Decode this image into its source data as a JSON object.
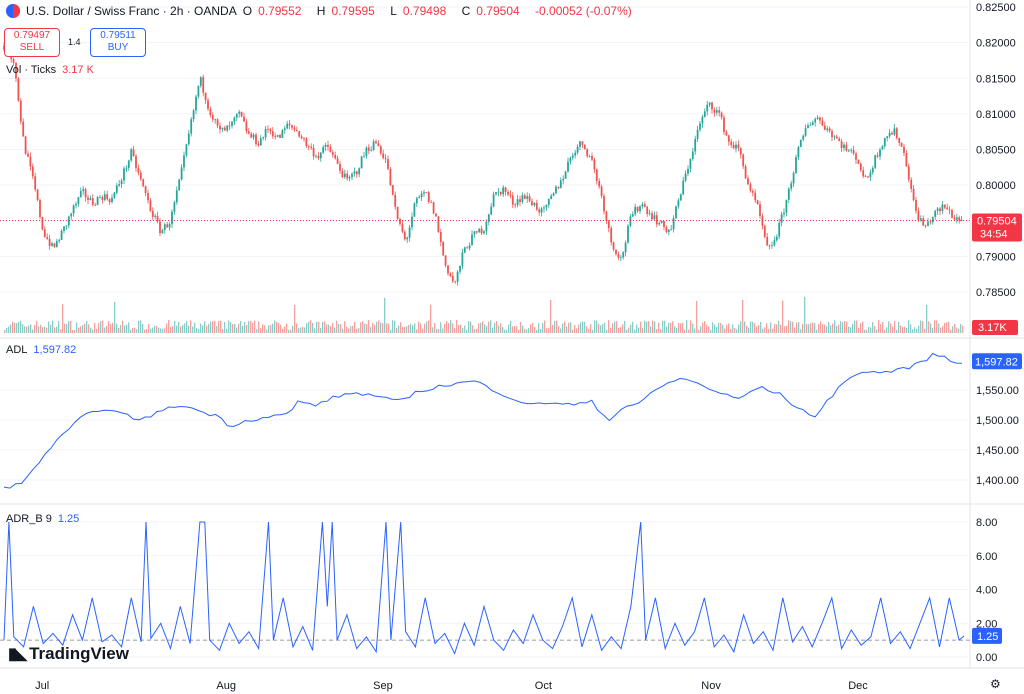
{
  "header": {
    "title": "U.S. Dollar / Swiss Franc · 2h · OANDA",
    "ohlc": [
      {
        "k": "O",
        "v": "0.79552"
      },
      {
        "k": "H",
        "v": "0.79595"
      },
      {
        "k": "L",
        "v": "0.79498"
      },
      {
        "k": "C",
        "v": "0.79504"
      }
    ],
    "change": "-0.00052 (-0.07%)"
  },
  "trade": {
    "sell_price": "0.79497",
    "sell_label": "SELL",
    "buy_price": "0.79511",
    "buy_label": "BUY",
    "spread": "1.4"
  },
  "volume_legend": {
    "name": "Vol · Ticks",
    "value": "3.17 K"
  },
  "adl_legend": {
    "name": "ADL",
    "value": "1,597.82"
  },
  "adr_legend": {
    "name": "ADR_B 9",
    "value": "1.25"
  },
  "brand": "TradingView",
  "colors": {
    "up": "#26a69a",
    "down": "#ef5350",
    "line": "#2962ff",
    "price_tag": "#f23645",
    "grid": "#f0f3fa"
  },
  "chart_data": [
    {
      "type": "candlestick",
      "title": "U.S. Dollar / Swiss Franc · 2h · OANDA",
      "y_ticks": [
        "0.82500",
        "0.82000",
        "0.81500",
        "0.81000",
        "0.80500",
        "0.80000",
        "0.79500",
        "0.79000",
        "0.78500"
      ],
      "ylim": [
        0.7838,
        0.8255
      ],
      "last_price": "0.79504",
      "countdown": "34:54",
      "x_labels": [
        "Jul",
        "Aug",
        "Sep",
        "Oct",
        "Nov",
        "Dec"
      ],
      "close_path": [
        {
          "t": 0,
          "v": 0.8195
        },
        {
          "t": 2,
          "v": 0.8175
        },
        {
          "t": 4,
          "v": 0.806
        },
        {
          "t": 6,
          "v": 0.8005
        },
        {
          "t": 8,
          "v": 0.7935
        },
        {
          "t": 10,
          "v": 0.791
        },
        {
          "t": 12,
          "v": 0.7935
        },
        {
          "t": 14,
          "v": 0.7965
        },
        {
          "t": 16,
          "v": 0.799
        },
        {
          "t": 18,
          "v": 0.7975
        },
        {
          "t": 20,
          "v": 0.7985
        },
        {
          "t": 22,
          "v": 0.798
        },
        {
          "t": 24,
          "v": 0.801
        },
        {
          "t": 26,
          "v": 0.8045
        },
        {
          "t": 28,
          "v": 0.8005
        },
        {
          "t": 30,
          "v": 0.7965
        },
        {
          "t": 32,
          "v": 0.7935
        },
        {
          "t": 34,
          "v": 0.795
        },
        {
          "t": 36,
          "v": 0.801
        },
        {
          "t": 38,
          "v": 0.808
        },
        {
          "t": 40,
          "v": 0.815
        },
        {
          "t": 42,
          "v": 0.8105
        },
        {
          "t": 44,
          "v": 0.8075
        },
        {
          "t": 46,
          "v": 0.808
        },
        {
          "t": 48,
          "v": 0.81
        },
        {
          "t": 50,
          "v": 0.807
        },
        {
          "t": 52,
          "v": 0.806
        },
        {
          "t": 54,
          "v": 0.808
        },
        {
          "t": 56,
          "v": 0.8065
        },
        {
          "t": 58,
          "v": 0.8085
        },
        {
          "t": 60,
          "v": 0.8075
        },
        {
          "t": 62,
          "v": 0.8055
        },
        {
          "t": 64,
          "v": 0.804
        },
        {
          "t": 66,
          "v": 0.8055
        },
        {
          "t": 68,
          "v": 0.803
        },
        {
          "t": 70,
          "v": 0.8005
        },
        {
          "t": 72,
          "v": 0.802
        },
        {
          "t": 74,
          "v": 0.805
        },
        {
          "t": 76,
          "v": 0.806
        },
        {
          "t": 78,
          "v": 0.8035
        },
        {
          "t": 80,
          "v": 0.796
        },
        {
          "t": 82,
          "v": 0.792
        },
        {
          "t": 84,
          "v": 0.7975
        },
        {
          "t": 86,
          "v": 0.799
        },
        {
          "t": 88,
          "v": 0.796
        },
        {
          "t": 90,
          "v": 0.789
        },
        {
          "t": 92,
          "v": 0.786
        },
        {
          "t": 94,
          "v": 0.791
        },
        {
          "t": 96,
          "v": 0.793
        },
        {
          "t": 98,
          "v": 0.794
        },
        {
          "t": 100,
          "v": 0.7985
        },
        {
          "t": 102,
          "v": 0.7995
        },
        {
          "t": 104,
          "v": 0.7975
        },
        {
          "t": 106,
          "v": 0.7985
        },
        {
          "t": 108,
          "v": 0.7975
        },
        {
          "t": 110,
          "v": 0.796
        },
        {
          "t": 112,
          "v": 0.7985
        },
        {
          "t": 114,
          "v": 0.801
        },
        {
          "t": 116,
          "v": 0.8045
        },
        {
          "t": 118,
          "v": 0.806
        },
        {
          "t": 120,
          "v": 0.8035
        },
        {
          "t": 122,
          "v": 0.7985
        },
        {
          "t": 124,
          "v": 0.792
        },
        {
          "t": 126,
          "v": 0.7895
        },
        {
          "t": 128,
          "v": 0.7955
        },
        {
          "t": 130,
          "v": 0.7975
        },
        {
          "t": 132,
          "v": 0.796
        },
        {
          "t": 134,
          "v": 0.7945
        },
        {
          "t": 136,
          "v": 0.7935
        },
        {
          "t": 138,
          "v": 0.7985
        },
        {
          "t": 140,
          "v": 0.8035
        },
        {
          "t": 142,
          "v": 0.8085
        },
        {
          "t": 144,
          "v": 0.8115
        },
        {
          "t": 146,
          "v": 0.81
        },
        {
          "t": 148,
          "v": 0.806
        },
        {
          "t": 150,
          "v": 0.805
        },
        {
          "t": 152,
          "v": 0.8
        },
        {
          "t": 154,
          "v": 0.7965
        },
        {
          "t": 156,
          "v": 0.7905
        },
        {
          "t": 158,
          "v": 0.7935
        },
        {
          "t": 160,
          "v": 0.7985
        },
        {
          "t": 162,
          "v": 0.8045
        },
        {
          "t": 164,
          "v": 0.8085
        },
        {
          "t": 166,
          "v": 0.8095
        },
        {
          "t": 168,
          "v": 0.808
        },
        {
          "t": 170,
          "v": 0.8065
        },
        {
          "t": 172,
          "v": 0.805
        },
        {
          "t": 174,
          "v": 0.804
        },
        {
          "t": 176,
          "v": 0.8005
        },
        {
          "t": 178,
          "v": 0.804
        },
        {
          "t": 180,
          "v": 0.807
        },
        {
          "t": 182,
          "v": 0.8075
        },
        {
          "t": 184,
          "v": 0.804
        },
        {
          "t": 186,
          "v": 0.7965
        },
        {
          "t": 188,
          "v": 0.794
        },
        {
          "t": 190,
          "v": 0.796
        },
        {
          "t": 192,
          "v": 0.797
        },
        {
          "t": 194,
          "v": 0.7955
        },
        {
          "t": 196,
          "v": 0.795
        }
      ]
    },
    {
      "type": "line",
      "title": "ADL",
      "y_ticks": [
        "1,550.00",
        "1,500.00",
        "1,450.00",
        "1,400.00"
      ],
      "ylim": [
        1385,
        1615
      ],
      "last_value": "1,597.82",
      "points": [
        {
          "t": 0,
          "v": 1387
        },
        {
          "t": 4,
          "v": 1395
        },
        {
          "t": 8,
          "v": 1440
        },
        {
          "t": 12,
          "v": 1475
        },
        {
          "t": 16,
          "v": 1505
        },
        {
          "t": 20,
          "v": 1520
        },
        {
          "t": 24,
          "v": 1510
        },
        {
          "t": 28,
          "v": 1500
        },
        {
          "t": 32,
          "v": 1515
        },
        {
          "t": 36,
          "v": 1525
        },
        {
          "t": 40,
          "v": 1515
        },
        {
          "t": 44,
          "v": 1505
        },
        {
          "t": 46,
          "v": 1490
        },
        {
          "t": 50,
          "v": 1500
        },
        {
          "t": 54,
          "v": 1505
        },
        {
          "t": 58,
          "v": 1510
        },
        {
          "t": 60,
          "v": 1530
        },
        {
          "t": 64,
          "v": 1525
        },
        {
          "t": 68,
          "v": 1540
        },
        {
          "t": 72,
          "v": 1545
        },
        {
          "t": 76,
          "v": 1540
        },
        {
          "t": 80,
          "v": 1530
        },
        {
          "t": 84,
          "v": 1545
        },
        {
          "t": 88,
          "v": 1555
        },
        {
          "t": 92,
          "v": 1560
        },
        {
          "t": 96,
          "v": 1565
        },
        {
          "t": 100,
          "v": 1550
        },
        {
          "t": 104,
          "v": 1535
        },
        {
          "t": 108,
          "v": 1525
        },
        {
          "t": 112,
          "v": 1530
        },
        {
          "t": 116,
          "v": 1525
        },
        {
          "t": 120,
          "v": 1530
        },
        {
          "t": 122,
          "v": 1510
        },
        {
          "t": 124,
          "v": 1500
        },
        {
          "t": 126,
          "v": 1520
        },
        {
          "t": 130,
          "v": 1530
        },
        {
          "t": 134,
          "v": 1555
        },
        {
          "t": 138,
          "v": 1570
        },
        {
          "t": 142,
          "v": 1560
        },
        {
          "t": 146,
          "v": 1545
        },
        {
          "t": 150,
          "v": 1535
        },
        {
          "t": 154,
          "v": 1555
        },
        {
          "t": 158,
          "v": 1545
        },
        {
          "t": 162,
          "v": 1520
        },
        {
          "t": 166,
          "v": 1505
        },
        {
          "t": 168,
          "v": 1530
        },
        {
          "t": 172,
          "v": 1570
        },
        {
          "t": 176,
          "v": 1580
        },
        {
          "t": 180,
          "v": 1580
        },
        {
          "t": 184,
          "v": 1585
        },
        {
          "t": 188,
          "v": 1600
        },
        {
          "t": 190,
          "v": 1610
        },
        {
          "t": 192,
          "v": 1605
        },
        {
          "t": 194,
          "v": 1595
        },
        {
          "t": 196,
          "v": 1598
        }
      ]
    },
    {
      "type": "line",
      "title": "ADR_B 9",
      "y_ticks": [
        "8.00",
        "6.00",
        "4.00",
        "2.00",
        "0.00"
      ],
      "ylim": [
        -0.3,
        8.8
      ],
      "last_value": "1.25",
      "reference_level": 1.0,
      "points": [
        {
          "t": 0,
          "v": 1.0
        },
        {
          "t": 1,
          "v": 8.0
        },
        {
          "t": 2,
          "v": 1.2
        },
        {
          "t": 4,
          "v": 0.6
        },
        {
          "t": 6,
          "v": 3.0
        },
        {
          "t": 8,
          "v": 0.8
        },
        {
          "t": 10,
          "v": 1.4
        },
        {
          "t": 12,
          "v": 0.7
        },
        {
          "t": 14,
          "v": 2.5
        },
        {
          "t": 16,
          "v": 1.0
        },
        {
          "t": 18,
          "v": 3.5
        },
        {
          "t": 20,
          "v": 0.9
        },
        {
          "t": 22,
          "v": 1.3
        },
        {
          "t": 24,
          "v": 0.6
        },
        {
          "t": 26,
          "v": 3.5
        },
        {
          "t": 28,
          "v": 0.9
        },
        {
          "t": 29,
          "v": 8.0
        },
        {
          "t": 30,
          "v": 1.1
        },
        {
          "t": 32,
          "v": 2.0
        },
        {
          "t": 34,
          "v": 0.5
        },
        {
          "t": 36,
          "v": 3.0
        },
        {
          "t": 38,
          "v": 0.8
        },
        {
          "t": 40,
          "v": 8.0
        },
        {
          "t": 41,
          "v": 8.0
        },
        {
          "t": 42,
          "v": 1.0
        },
        {
          "t": 44,
          "v": 0.4
        },
        {
          "t": 46,
          "v": 2.0
        },
        {
          "t": 48,
          "v": 0.8
        },
        {
          "t": 50,
          "v": 1.5
        },
        {
          "t": 52,
          "v": 0.5
        },
        {
          "t": 54,
          "v": 8.0
        },
        {
          "t": 55,
          "v": 1.0
        },
        {
          "t": 57,
          "v": 3.5
        },
        {
          "t": 59,
          "v": 0.6
        },
        {
          "t": 61,
          "v": 1.8
        },
        {
          "t": 63,
          "v": 0.4
        },
        {
          "t": 65,
          "v": 8.0
        },
        {
          "t": 66,
          "v": 3.0
        },
        {
          "t": 67,
          "v": 8.0
        },
        {
          "t": 68,
          "v": 1.0
        },
        {
          "t": 70,
          "v": 2.5
        },
        {
          "t": 72,
          "v": 0.5
        },
        {
          "t": 74,
          "v": 1.2
        },
        {
          "t": 76,
          "v": 0.3
        },
        {
          "t": 78,
          "v": 8.0
        },
        {
          "t": 79,
          "v": 1.0
        },
        {
          "t": 81,
          "v": 8.0
        },
        {
          "t": 82,
          "v": 1.5
        },
        {
          "t": 84,
          "v": 0.6
        },
        {
          "t": 86,
          "v": 3.5
        },
        {
          "t": 88,
          "v": 0.8
        },
        {
          "t": 90,
          "v": 1.4
        },
        {
          "t": 92,
          "v": 0.2
        },
        {
          "t": 94,
          "v": 2.0
        },
        {
          "t": 96,
          "v": 0.7
        },
        {
          "t": 98,
          "v": 3.0
        },
        {
          "t": 100,
          "v": 1.0
        },
        {
          "t": 102,
          "v": 0.4
        },
        {
          "t": 104,
          "v": 1.6
        },
        {
          "t": 106,
          "v": 0.8
        },
        {
          "t": 108,
          "v": 2.5
        },
        {
          "t": 110,
          "v": 1.0
        },
        {
          "t": 112,
          "v": 0.5
        },
        {
          "t": 114,
          "v": 1.8
        },
        {
          "t": 116,
          "v": 3.5
        },
        {
          "t": 118,
          "v": 0.6
        },
        {
          "t": 120,
          "v": 2.5
        },
        {
          "t": 122,
          "v": 0.4
        },
        {
          "t": 124,
          "v": 1.2
        },
        {
          "t": 126,
          "v": 0.5
        },
        {
          "t": 128,
          "v": 3.0
        },
        {
          "t": 130,
          "v": 8.0
        },
        {
          "t": 131,
          "v": 1.0
        },
        {
          "t": 133,
          "v": 3.5
        },
        {
          "t": 135,
          "v": 0.5
        },
        {
          "t": 137,
          "v": 2.0
        },
        {
          "t": 139,
          "v": 0.7
        },
        {
          "t": 141,
          "v": 1.5
        },
        {
          "t": 143,
          "v": 3.5
        },
        {
          "t": 145,
          "v": 0.6
        },
        {
          "t": 147,
          "v": 1.3
        },
        {
          "t": 149,
          "v": 0.3
        },
        {
          "t": 151,
          "v": 2.5
        },
        {
          "t": 153,
          "v": 0.8
        },
        {
          "t": 155,
          "v": 1.5
        },
        {
          "t": 157,
          "v": 0.4
        },
        {
          "t": 159,
          "v": 3.5
        },
        {
          "t": 161,
          "v": 0.9
        },
        {
          "t": 163,
          "v": 1.8
        },
        {
          "t": 165,
          "v": 0.6
        },
        {
          "t": 167,
          "v": 2.0
        },
        {
          "t": 169,
          "v": 3.5
        },
        {
          "t": 171,
          "v": 0.5
        },
        {
          "t": 173,
          "v": 1.6
        },
        {
          "t": 175,
          "v": 0.7
        },
        {
          "t": 177,
          "v": 1.2
        },
        {
          "t": 179,
          "v": 3.5
        },
        {
          "t": 181,
          "v": 0.8
        },
        {
          "t": 183,
          "v": 1.5
        },
        {
          "t": 185,
          "v": 0.5
        },
        {
          "t": 187,
          "v": 2.0
        },
        {
          "t": 189,
          "v": 3.5
        },
        {
          "t": 191,
          "v": 0.6
        },
        {
          "t": 193,
          "v": 3.5
        },
        {
          "t": 195,
          "v": 1.0
        },
        {
          "t": 196,
          "v": 1.25
        }
      ]
    },
    {
      "type": "bar",
      "title": "Vol · Ticks",
      "last_value": "3.17K"
    }
  ]
}
